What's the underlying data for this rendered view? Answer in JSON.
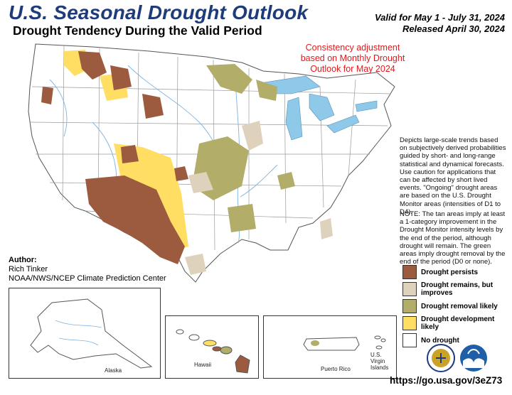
{
  "header": {
    "title": "U.S. Seasonal Drought Outlook",
    "subtitle": "Drought Tendency During the Valid Period",
    "valid": "Valid for May 1 - July 31, 2024",
    "released": "Released April 30, 2024"
  },
  "consistency_note": "Consistency adjustment based on Monthly Drought Outlook for May 2024",
  "description": "Depicts large-scale trends based on subjectively derived probabilities guided by short- and long-range statistical and dynamical forecasts. Use caution for applications that can be affected by short lived events. \"Ongoing\" drought areas are based on the U.S. Drought Monitor areas (intensities of D1 to D4).",
  "note": "NOTE: The tan areas imply at least a 1-category improvement in the Drought Monitor intensity levels by the end of the period, although drought will remain. The green areas imply drought removal by the end of the period (D0 or none).",
  "legend": [
    {
      "label": "Drought persists",
      "color": "#9c5b3f"
    },
    {
      "label": "Drought remains, but improves",
      "color": "#ded2bc"
    },
    {
      "label": "Drought removal likely",
      "color": "#b2ad69"
    },
    {
      "label": "Drought development likely",
      "color": "#ffde63"
    },
    {
      "label": "No drought",
      "color": "#ffffff"
    }
  ],
  "author": {
    "heading": "Author:",
    "name": "Rich Tinker",
    "org": "NOAA/NWS/NCEP Climate Prediction Center"
  },
  "insets": {
    "alaska": "Alaska",
    "hawaii": "Hawaii",
    "puerto_rico": "Puerto Rico",
    "virgin_islands": "U.S. Virgin Islands"
  },
  "url": "https://go.usa.gov/3eZ73",
  "colors": {
    "title": "#1f3c7a",
    "water": "#8fc9ea",
    "river": "#7fb3e0",
    "state_border": "#9a9a9a",
    "consistency": "#e31a1c"
  },
  "icons": [
    "doc-seal-icon",
    "noaa-logo-icon"
  ]
}
